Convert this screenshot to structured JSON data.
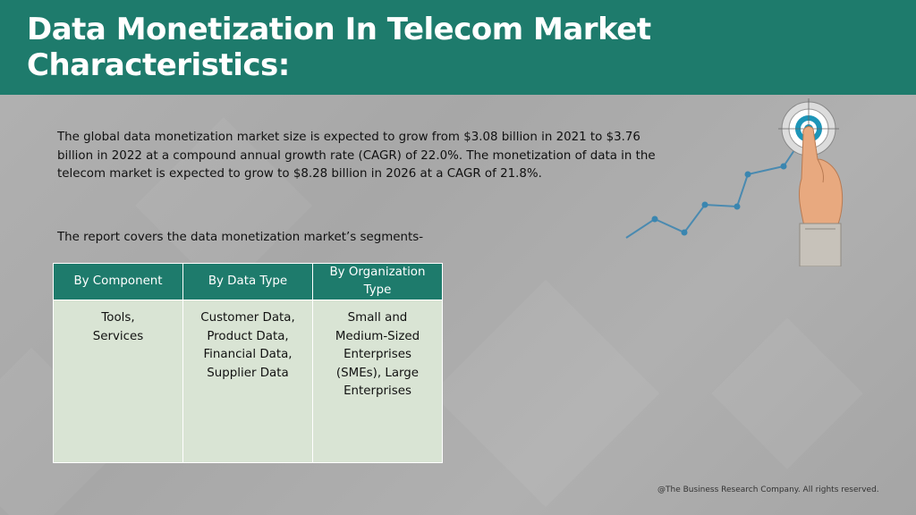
{
  "header": {
    "title": "Data Monetization In Telecom Market Characteristics:"
  },
  "intro": {
    "text": "The global data monetization market size is expected to grow from $3.08 billion in 2021 to $3.76 billion in 2022 at a compound annual growth rate (CAGR) of 22.0%. The monetization of data in the telecom market is expected to grow to $8.28 billion in 2026 at a CAGR of 21.8%."
  },
  "segments": {
    "heading": "The report covers the data monetization market’s segments-",
    "columns": [
      {
        "header": "By Component",
        "lines": [
          "Tools,",
          "Services"
        ]
      },
      {
        "header": "By Data Type",
        "lines": [
          "Customer Data,",
          "Product Data,",
          "Financial Data,",
          "Supplier Data"
        ]
      },
      {
        "header": "By Organization Type",
        "lines": [
          "Small and",
          "Medium-Sized",
          "Enterprises",
          "(SMEs), Large",
          "Enterprises"
        ]
      }
    ]
  },
  "footer": {
    "text": "@The Business Research Company. All rights reserved."
  },
  "colors": {
    "header_bg": "#1e7b6c",
    "table_header_bg": "#1e7b6c",
    "table_cell_bg": "#d9e4d4",
    "graphic_line": "#4a8ab0"
  },
  "icons": [
    "growth-chart-graphic",
    "target-icon",
    "pointing-hand-icon"
  ]
}
